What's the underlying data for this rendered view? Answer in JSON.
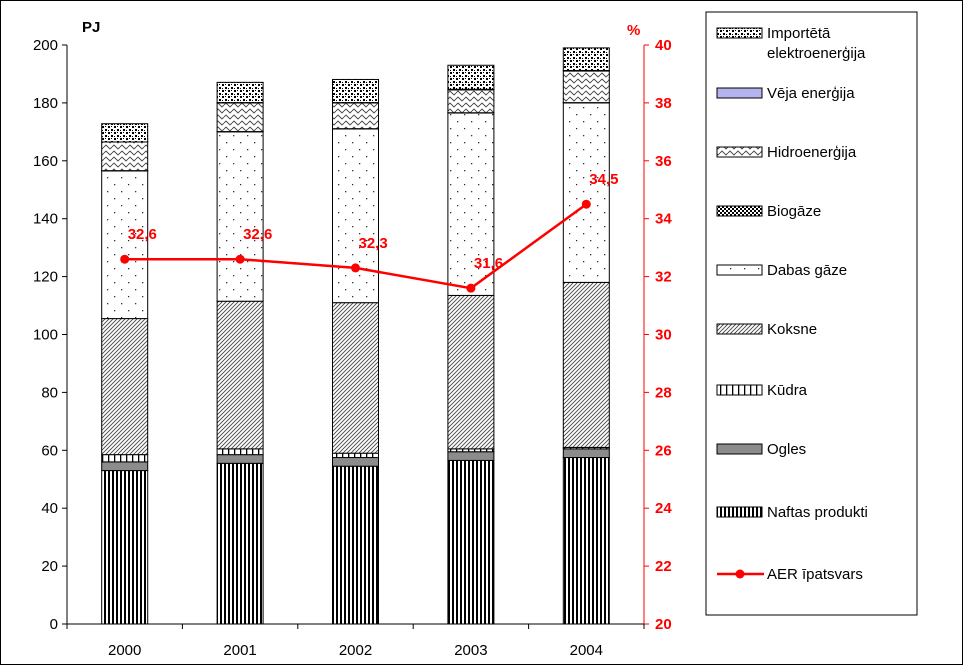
{
  "chart_data": {
    "type": "bar",
    "stacked": true,
    "categories": [
      "2000",
      "2001",
      "2002",
      "2003",
      "2004"
    ],
    "ylabel": "PJ",
    "ylim": [
      0,
      200
    ],
    "y_ticks": [
      "0",
      "20",
      "40",
      "60",
      "80",
      "100",
      "120",
      "140",
      "160",
      "180",
      "200"
    ],
    "y2label": "%",
    "y2lim": [
      20,
      40
    ],
    "y2_ticks": [
      "20",
      "22",
      "24",
      "26",
      "28",
      "30",
      "32",
      "34",
      "36",
      "38",
      "40"
    ],
    "grid": false,
    "legend_position": "right",
    "series": [
      {
        "name": "Naftas produkti",
        "pattern": "vertical-stripes",
        "values": [
          53,
          55.5,
          54.5,
          56.5,
          57.5
        ]
      },
      {
        "name": "Ogles",
        "pattern": "solid-gray",
        "values": [
          3,
          3,
          3,
          3,
          3
        ]
      },
      {
        "name": "Kūdra",
        "pattern": "wide-vertical-stripes",
        "values": [
          2.5,
          2,
          1.5,
          1,
          0.5
        ]
      },
      {
        "name": "Koksne",
        "pattern": "diagonal-hatch",
        "values": [
          47,
          51,
          52,
          53,
          57
        ]
      },
      {
        "name": "Dabas gāze",
        "pattern": "sparse-dots",
        "values": [
          51,
          58.5,
          60,
          63,
          62
        ]
      },
      {
        "name": "Biogāze",
        "pattern": "dense-checker",
        "values": [
          0.1,
          0.1,
          0.1,
          0.1,
          0.1
        ]
      },
      {
        "name": "Hidroenerģija",
        "pattern": "wave",
        "values": [
          9.9,
          9.9,
          8.9,
          7.9,
          10.9
        ]
      },
      {
        "name": "Vēja enerģija",
        "pattern": "solid-lavender",
        "values": [
          0.01,
          0.1,
          0.1,
          0.2,
          0.2
        ]
      },
      {
        "name": "Importētā elektroenerģija",
        "pattern": "dense-dots",
        "values": [
          6.3,
          7,
          8,
          8.3,
          7.8
        ]
      }
    ],
    "line_series": {
      "name": "AER īpatsvars",
      "axis": "right",
      "values": [
        32.6,
        32.6,
        32.3,
        31.6,
        34.5
      ],
      "labels": [
        "32,6",
        "32,6",
        "32,3",
        "31,6",
        "34,5"
      ],
      "color": "#ff0000"
    }
  },
  "legend": [
    {
      "lines": [
        "Importētā",
        "elektroenerģija"
      ],
      "pattern": "dense-dots"
    },
    {
      "lines": [
        "Vēja enerģija"
      ],
      "pattern": "solid-lavender"
    },
    {
      "lines": [
        "Hidroenerģija"
      ],
      "pattern": "wave"
    },
    {
      "lines": [
        "Biogāze"
      ],
      "pattern": "dense-checker"
    },
    {
      "lines": [
        "Dabas gāze"
      ],
      "pattern": "sparse-dots"
    },
    {
      "lines": [
        "Koksne"
      ],
      "pattern": "diagonal-hatch"
    },
    {
      "lines": [
        "Kūdra"
      ],
      "pattern": "wide-vertical-stripes"
    },
    {
      "lines": [
        "Ogles"
      ],
      "pattern": "solid-gray"
    },
    {
      "lines": [
        "Naftas produkti"
      ],
      "pattern": "vertical-stripes"
    },
    {
      "lines": [
        "AER īpatsvars"
      ],
      "pattern": "red-line"
    }
  ]
}
